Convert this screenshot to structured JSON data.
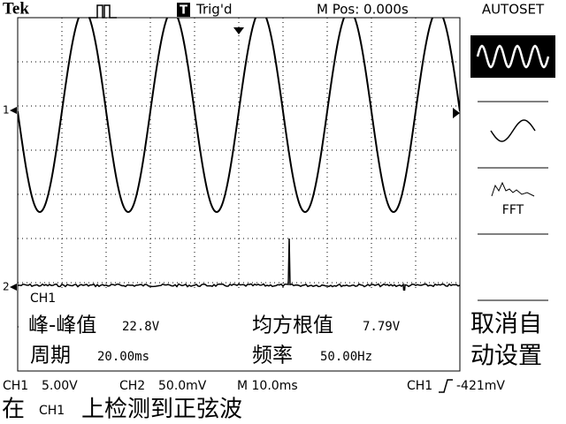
{
  "header": {
    "brand": "Tek",
    "trigger_icon": "T",
    "trigger_status": "Trig'd",
    "position": "M Pos: 0.000s",
    "menu_title": "AUTOSET"
  },
  "screen": {
    "ch1_marker": "1",
    "ch2_marker": "2",
    "measure_channel": "CH1",
    "measurements": [
      {
        "label": "峰-峰值",
        "value": "22.8V"
      },
      {
        "label": "均方根值",
        "value": "7.79V"
      },
      {
        "label": "周期",
        "value": "20.00ms"
      },
      {
        "label": "频率",
        "value": "50.00Hz"
      }
    ]
  },
  "menu": {
    "fft": "FFT",
    "cancel": [
      "取消自",
      "动设置"
    ]
  },
  "status": {
    "ch1": "CH1",
    "ch1_scale": "5.00V",
    "ch2": "CH2",
    "ch2_scale": "50.0mV",
    "timebase": "M 10.0ms",
    "trigger_source": "CH1",
    "trigger_level": "-421mV"
  },
  "message": {
    "prefix": "在",
    "channel": "CH1",
    "text": "上检测到正弦波"
  }
}
